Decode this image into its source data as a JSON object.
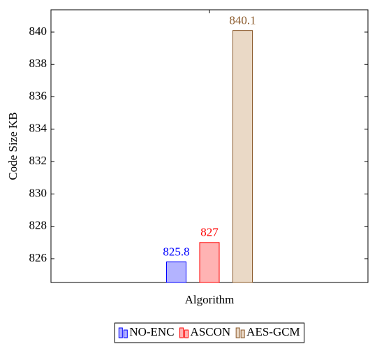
{
  "chart_data": {
    "type": "bar",
    "y_label": "Code Size KB",
    "categories": [
      "Algorithm"
    ],
    "series": [
      {
        "name": "NO-ENC",
        "color": "#0000ff",
        "fill": "#b3b3ff",
        "values": [
          825.8
        ]
      },
      {
        "name": "ASCON",
        "color": "#ff0000",
        "fill": "#ffb3b3",
        "values": [
          827
        ]
      },
      {
        "name": "AES-GCM",
        "color": "#8b5a2b",
        "fill": "#ead9c6",
        "values": [
          840.1
        ]
      }
    ],
    "ylim": [
      824.53,
      841.38
    ],
    "yticks": [
      826,
      828,
      830,
      832,
      834,
      836,
      838,
      840
    ],
    "legend": "bottom"
  }
}
